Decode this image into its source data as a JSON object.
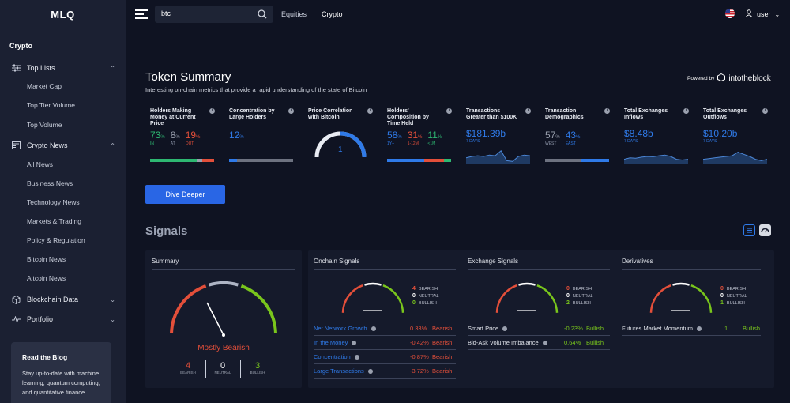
{
  "app": {
    "logo": "MLQ"
  },
  "sidebar": {
    "section": "Crypto",
    "groups": [
      {
        "label": "Top Lists",
        "icon": "sliders-icon",
        "expanded": true,
        "items": [
          "Market Cap",
          "Top Tier Volume",
          "Top Volume"
        ]
      },
      {
        "label": "Crypto News",
        "icon": "newspaper-icon",
        "expanded": true,
        "items": [
          "All News",
          "Business News",
          "Technology News",
          "Markets & Trading",
          "Policy & Regulation",
          "Bitcoin News",
          "Altcoin News"
        ]
      },
      {
        "label": "Blockchain Data",
        "icon": "cube-icon",
        "expanded": false,
        "items": []
      },
      {
        "label": "Portfolio",
        "icon": "pulse-icon",
        "expanded": false,
        "items": []
      }
    ],
    "blog": {
      "title": "Read the Blog",
      "text": "Stay up-to-date with machine learning, quantum computing, and quantitative finance."
    }
  },
  "header": {
    "search_value": "btc",
    "nav": [
      "Equities",
      "Crypto"
    ],
    "user": "user"
  },
  "token_summary": {
    "title": "Token Summary",
    "subtitle": "Interesting on-chain metrics that provide a rapid understanding of the state of Bitcoin",
    "powered_by": "Powered by",
    "brand": "intotheblock",
    "metrics": [
      {
        "label": "Holders Making Money at Current Price",
        "values": [
          {
            "v": "73",
            "u": "%",
            "tag": "IN",
            "color": "#2eb872"
          },
          {
            "v": "8",
            "u": "%",
            "tag": "AT",
            "color": "#9aa0ae"
          },
          {
            "v": "19",
            "u": "%",
            "tag": "OUT",
            "color": "#e34f3a"
          }
        ],
        "bar": [
          [
            "#2eb872",
            0.73
          ],
          [
            "#9aa0ae",
            0.08
          ],
          [
            "#e34f3a",
            0.19
          ]
        ]
      },
      {
        "label": "Concentration by Large Holders",
        "values": [
          {
            "v": "12",
            "u": "%",
            "tag": "",
            "color": "#2f7ae8"
          }
        ],
        "bar": [
          [
            "#2f7ae8",
            0.12
          ],
          [
            "#6d7280",
            0.88
          ]
        ]
      },
      {
        "label": "Price Correlation with Bitcoin",
        "gauge_value": "1",
        "gauge_level": 1.0
      },
      {
        "label": "Holders' Composition by Time Held",
        "values": [
          {
            "v": "58",
            "u": "%",
            "tag": "1Y+",
            "color": "#2f7ae8"
          },
          {
            "v": "31",
            "u": "%",
            "tag": "1-12M",
            "color": "#e34f3a"
          },
          {
            "v": "11",
            "u": "%",
            "tag": "<1M",
            "color": "#2eb872"
          }
        ],
        "bar": [
          [
            "#2f7ae8",
            0.58
          ],
          [
            "#e34f3a",
            0.31
          ],
          [
            "#2eb872",
            0.11
          ]
        ]
      },
      {
        "label": "Transactions Greater than $100K",
        "amount": "$181.39b",
        "period": "7 DAYS",
        "spark": [
          0.4,
          0.5,
          0.55,
          0.5,
          0.6,
          0.55,
          0.9,
          0.2,
          0.15,
          0.5,
          0.6,
          0.55
        ]
      },
      {
        "label": "Transaction Demographics",
        "values": [
          {
            "v": "57",
            "u": "%",
            "tag": "WEST",
            "color": "#9aa0ae"
          },
          {
            "v": "43",
            "u": "%",
            "tag": "EAST",
            "color": "#2f7ae8"
          }
        ],
        "bar": [
          [
            "#6d7280",
            0.57
          ],
          [
            "#2f7ae8",
            0.43
          ]
        ]
      },
      {
        "label": "Total Exchanges Inflows",
        "amount": "$8.48b",
        "period": "7 DAYS",
        "spark": [
          0.3,
          0.4,
          0.38,
          0.45,
          0.5,
          0.48,
          0.55,
          0.6,
          0.5,
          0.3,
          0.25,
          0.3
        ]
      },
      {
        "label": "Total Exchanges Outflows",
        "amount": "$10.20b",
        "period": "7 DAYS",
        "spark": [
          0.3,
          0.35,
          0.4,
          0.45,
          0.5,
          0.55,
          0.8,
          0.65,
          0.5,
          0.3,
          0.2,
          0.3
        ]
      }
    ],
    "button": "Dive Deeper"
  },
  "signals": {
    "title": "Signals",
    "summary": {
      "title": "Summary",
      "verdict": "Mostly Bearish",
      "needle_level": 0.35,
      "counts": [
        {
          "v": "4",
          "tag": "BEARISH",
          "color": "#e34f3a"
        },
        {
          "v": "0",
          "tag": "NEUTRAL",
          "color": "#ffffff"
        },
        {
          "v": "3",
          "tag": "BULLISH",
          "color": "#79c51c"
        }
      ]
    },
    "groups": [
      {
        "title": "Onchain Signals",
        "legend": [
          {
            "v": "4",
            "tag": "BEARISH",
            "color": "#e34f3a"
          },
          {
            "v": "0",
            "tag": "NEUTRAL",
            "color": "#ffffff"
          },
          {
            "v": "0",
            "tag": "BULLISH",
            "color": "#79c51c"
          }
        ],
        "rows": [
          {
            "name": "Net Network Growth",
            "value": "0.33%",
            "signal": "Bearish"
          },
          {
            "name": "In the Money",
            "value": "-0.42%",
            "signal": "Bearish"
          },
          {
            "name": "Concentration",
            "value": "-0.87%",
            "signal": "Bearish"
          },
          {
            "name": "Large Transactions",
            "value": "-3.72%",
            "signal": "Bearish"
          }
        ]
      },
      {
        "title": "Exchange Signals",
        "legend": [
          {
            "v": "0",
            "tag": "BEARISH",
            "color": "#e34f3a"
          },
          {
            "v": "0",
            "tag": "NEUTRAL",
            "color": "#ffffff"
          },
          {
            "v": "2",
            "tag": "BULLISH",
            "color": "#79c51c"
          }
        ],
        "rows": [
          {
            "name": "Smart Price",
            "value": "-0.23%",
            "signal": "Bullish"
          },
          {
            "name": "Bid-Ask Volume Imbalance",
            "value": "0.64%",
            "signal": "Bullish"
          }
        ]
      },
      {
        "title": "Derivatives",
        "legend": [
          {
            "v": "0",
            "tag": "BEARISH",
            "color": "#e34f3a"
          },
          {
            "v": "0",
            "tag": "NEUTRAL",
            "color": "#ffffff"
          },
          {
            "v": "1",
            "tag": "BULLISH",
            "color": "#79c51c"
          }
        ],
        "rows": [
          {
            "name": "Futures Market Momentum",
            "value": "1",
            "signal": "Bullish"
          }
        ]
      }
    ]
  }
}
